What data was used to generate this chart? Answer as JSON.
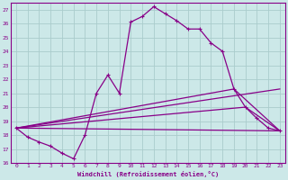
{
  "xlabel": "Windchill (Refroidissement éolien,°C)",
  "bg_color": "#cce8e8",
  "grid_color": "#aacccc",
  "line_color": "#880088",
  "xlim": [
    -0.5,
    23.5
  ],
  "ylim": [
    16,
    27.5
  ],
  "yticks": [
    16,
    17,
    18,
    19,
    20,
    21,
    22,
    23,
    24,
    25,
    26,
    27
  ],
  "xticks": [
    0,
    1,
    2,
    3,
    4,
    5,
    6,
    7,
    8,
    9,
    10,
    11,
    12,
    13,
    14,
    15,
    16,
    17,
    18,
    19,
    20,
    21,
    22,
    23
  ],
  "line1_x": [
    0,
    1,
    2,
    3,
    4,
    5,
    6,
    7,
    8,
    9,
    10,
    11,
    12,
    13,
    14,
    15,
    16,
    17,
    18,
    19,
    20,
    21,
    22,
    23
  ],
  "line1_y": [
    18.5,
    17.85,
    17.5,
    17.2,
    16.7,
    16.3,
    18.0,
    21.0,
    22.3,
    21.0,
    26.1,
    26.5,
    27.2,
    26.7,
    26.2,
    25.6,
    25.6,
    24.6,
    24.0,
    21.3,
    20.0,
    19.2,
    18.5,
    18.3
  ],
  "line2_x": [
    0,
    23
  ],
  "line2_y": [
    18.5,
    18.3
  ],
  "line3_x": [
    0,
    19,
    23
  ],
  "line3_y": [
    18.5,
    21.3,
    18.3
  ],
  "line4_x": [
    0,
    20,
    23
  ],
  "line4_y": [
    18.5,
    20.0,
    18.3
  ],
  "line5_x": [
    0,
    23
  ],
  "line5_y": [
    18.5,
    21.3
  ]
}
